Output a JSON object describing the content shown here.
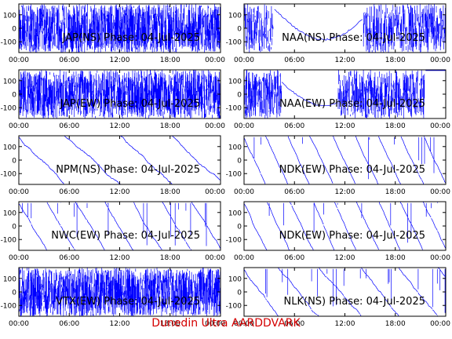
{
  "credit": "Dunedin Ultra AARDDVARK",
  "colors": {
    "trace": "#0000ff",
    "axis": "#000000",
    "title": "#000000",
    "credit": "#d40000"
  },
  "chart_data": [
    {
      "type": "line",
      "title": "JAP(NS) Phase: 04-Jul-2025",
      "x_ticks": [
        "00:00",
        "06:00",
        "12:00",
        "18:00",
        "00:00"
      ],
      "y_ticks": [
        100,
        0,
        -100
      ],
      "xlim": [
        0,
        24
      ],
      "ylim": [
        -180,
        180
      ],
      "pattern": "dense",
      "density": 0.94,
      "gaps": []
    },
    {
      "type": "line",
      "title": "NAA(NS) Phase: 04-Jul-2025",
      "x_ticks": [
        "00:00",
        "06:00",
        "12:00",
        "18:00",
        "00:00"
      ],
      "y_ticks": [
        100,
        0,
        -100
      ],
      "xlim": [
        0,
        24
      ],
      "ylim": [
        -180,
        180
      ],
      "pattern": "dense",
      "density": 0.6,
      "gaps": [
        [
          3.5,
          14.2
        ]
      ]
    },
    {
      "type": "line",
      "title": "JAP(EW) Phase: 04-Jul-2025",
      "x_ticks": [
        "00:00",
        "06:00",
        "12:00",
        "18:00",
        "00:00"
      ],
      "y_ticks": [
        100,
        0,
        -100
      ],
      "xlim": [
        0,
        24
      ],
      "ylim": [
        -180,
        180
      ],
      "pattern": "dense",
      "density": 0.92,
      "gaps": []
    },
    {
      "type": "line",
      "title": "NAA(EW) Phase: 04-Jul-2025",
      "x_ticks": [
        "00:00",
        "06:00",
        "12:00",
        "18:00",
        "00:00"
      ],
      "y_ticks": [
        100,
        0,
        -100
      ],
      "xlim": [
        0,
        24
      ],
      "ylim": [
        -180,
        180
      ],
      "pattern": "dense",
      "density": 0.7,
      "gaps": [
        [
          4.5,
          11.2
        ],
        [
          21.5,
          24
        ]
      ]
    },
    {
      "type": "line",
      "title": "NPM(NS) Phase: 04-Jul-2025",
      "x_ticks": [
        "00:00",
        "06:00",
        "12:00",
        "18:00",
        "00:00"
      ],
      "y_ticks": [
        100,
        0,
        -100
      ],
      "xlim": [
        0,
        24
      ],
      "ylim": [
        -180,
        180
      ],
      "pattern": "sparse",
      "density": 0.2,
      "gaps": []
    },
    {
      "type": "line",
      "title": "NDK(EW) Phase: 04-Jul-2025",
      "x_ticks": [
        "00:00",
        "06:00",
        "12:00",
        "18:00",
        "00:00"
      ],
      "y_ticks": [
        100,
        0,
        -100
      ],
      "xlim": [
        0,
        24
      ],
      "ylim": [
        -180,
        180
      ],
      "pattern": "sawtooth",
      "density": 0.6,
      "gaps": []
    },
    {
      "type": "line",
      "title": "NWC(EW) Phase: 04-Jul-2025",
      "x_ticks": [
        "00:00",
        "06:00",
        "12:00",
        "18:00",
        "00:00"
      ],
      "y_ticks": [
        100,
        0,
        -100
      ],
      "xlim": [
        0,
        24
      ],
      "ylim": [
        -180,
        180
      ],
      "pattern": "sawtooth",
      "density": 0.45,
      "gaps": []
    },
    {
      "type": "line",
      "title": "NDK(EW) Phase: 04-Jul-2025",
      "x_ticks": [
        "00:00",
        "06:00",
        "12:00",
        "18:00",
        "00:00"
      ],
      "y_ticks": [
        100,
        0,
        -100
      ],
      "xlim": [
        0,
        24
      ],
      "ylim": [
        -180,
        180
      ],
      "pattern": "sawtooth",
      "density": 0.6,
      "gaps": []
    },
    {
      "type": "line",
      "title": "VTX(EW) Phase: 04-Jul-2025",
      "x_ticks": [
        "00:00",
        "06:00",
        "12:00",
        "18:00",
        "00:00"
      ],
      "y_ticks": [
        100,
        0,
        -100
      ],
      "xlim": [
        0,
        24
      ],
      "ylim": [
        -180,
        180
      ],
      "pattern": "dense",
      "density": 1.0,
      "gaps": []
    },
    {
      "type": "line",
      "title": "NLK(NS) Phase: 04-Jul-2025",
      "x_ticks": [
        "00:00",
        "06:00",
        "12:00",
        "18:00",
        "00:00"
      ],
      "y_ticks": [
        100,
        0,
        -100
      ],
      "xlim": [
        0,
        24
      ],
      "ylim": [
        -180,
        180
      ],
      "pattern": "sawtooth",
      "density": 0.35,
      "gaps": []
    }
  ]
}
